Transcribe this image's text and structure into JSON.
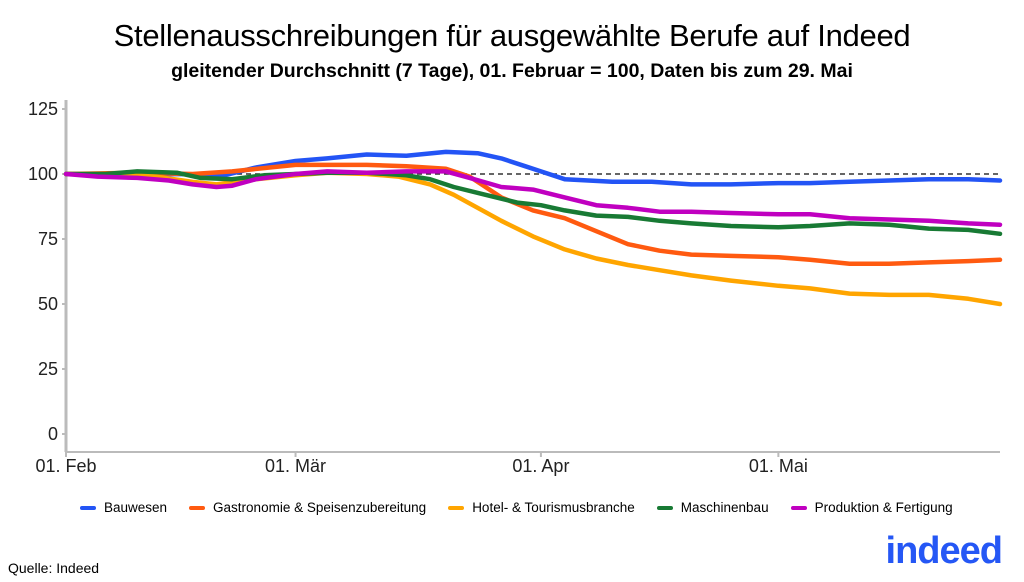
{
  "chart_data": {
    "type": "line",
    "title": "Stellenausschreibungen für ausgewählte Berufe auf Indeed",
    "subtitle": "gleitender Durchschnitt (7 Tage), 01. Februar = 100, Daten bis zum 29. Mai",
    "xlabel": "",
    "ylabel": "",
    "ylim": [
      0,
      125
    ],
    "yticks": [
      "0",
      "25",
      "50",
      "75",
      "100",
      "125"
    ],
    "xticks": [
      {
        "date": "02-01",
        "label": "01. Feb"
      },
      {
        "date": "03-01",
        "label": "01. Mär"
      },
      {
        "date": "04-01",
        "label": "01. Apr"
      },
      {
        "date": "05-01",
        "label": "01. Mai"
      }
    ],
    "xrange": [
      "02-01",
      "05-29"
    ],
    "reference_line": 100,
    "grid": false,
    "legend_position": "bottom",
    "series": [
      {
        "name": "Bauwesen",
        "color": "#2354f5",
        "points": [
          [
            "02-01",
            100
          ],
          [
            "02-08",
            99.5
          ],
          [
            "02-15",
            100
          ],
          [
            "02-21",
            99.5
          ],
          [
            "02-25",
            102.5
          ],
          [
            "03-01",
            105
          ],
          [
            "03-05",
            106
          ],
          [
            "03-10",
            107.5
          ],
          [
            "03-15",
            107
          ],
          [
            "03-20",
            108.5
          ],
          [
            "03-24",
            108
          ],
          [
            "03-27",
            106
          ],
          [
            "03-30",
            103
          ],
          [
            "04-01",
            101
          ],
          [
            "04-04",
            98
          ],
          [
            "04-10",
            97
          ],
          [
            "04-15",
            97
          ],
          [
            "04-20",
            96
          ],
          [
            "04-25",
            96
          ],
          [
            "05-01",
            96.5
          ],
          [
            "05-05",
            96.5
          ],
          [
            "05-10",
            97
          ],
          [
            "05-15",
            97.5
          ],
          [
            "05-20",
            98
          ],
          [
            "05-25",
            98
          ],
          [
            "05-29",
            97.5
          ]
        ]
      },
      {
        "name": "Gastronomie & Speisenzubereitung",
        "color": "#ff5a10",
        "points": [
          [
            "02-01",
            100
          ],
          [
            "02-10",
            100.5
          ],
          [
            "02-17",
            100
          ],
          [
            "02-22",
            101
          ],
          [
            "03-01",
            103.5
          ],
          [
            "03-10",
            103.5
          ],
          [
            "03-15",
            103
          ],
          [
            "03-20",
            102
          ],
          [
            "03-23",
            99
          ],
          [
            "03-27",
            91
          ],
          [
            "03-31",
            86
          ],
          [
            "04-04",
            83
          ],
          [
            "04-08",
            78
          ],
          [
            "04-12",
            73
          ],
          [
            "04-16",
            70.5
          ],
          [
            "04-20",
            69
          ],
          [
            "04-25",
            68.5
          ],
          [
            "05-01",
            68
          ],
          [
            "05-05",
            67
          ],
          [
            "05-10",
            65.5
          ],
          [
            "05-15",
            65.5
          ],
          [
            "05-20",
            66
          ],
          [
            "05-25",
            66.5
          ],
          [
            "05-29",
            67
          ]
        ]
      },
      {
        "name": "Hotel- & Tourismusbranche",
        "color": "#ffa500",
        "points": [
          [
            "02-01",
            100
          ],
          [
            "02-10",
            100
          ],
          [
            "02-17",
            97
          ],
          [
            "02-20",
            96
          ],
          [
            "02-25",
            98
          ],
          [
            "03-01",
            99.5
          ],
          [
            "03-05",
            100.5
          ],
          [
            "03-10",
            100
          ],
          [
            "03-14",
            99
          ],
          [
            "03-18",
            96
          ],
          [
            "03-21",
            92
          ],
          [
            "03-24",
            87
          ],
          [
            "03-27",
            82
          ],
          [
            "03-31",
            76
          ],
          [
            "04-04",
            71
          ],
          [
            "04-08",
            67.5
          ],
          [
            "04-12",
            65
          ],
          [
            "04-16",
            63
          ],
          [
            "04-20",
            61
          ],
          [
            "04-25",
            59
          ],
          [
            "05-01",
            57
          ],
          [
            "05-05",
            56
          ],
          [
            "05-10",
            54
          ],
          [
            "05-15",
            53.5
          ],
          [
            "05-20",
            53.5
          ],
          [
            "05-25",
            52
          ],
          [
            "05-29",
            50
          ]
        ]
      },
      {
        "name": "Maschinenbau",
        "color": "#187a34",
        "points": [
          [
            "02-01",
            100
          ],
          [
            "02-06",
            100
          ],
          [
            "02-10",
            101
          ],
          [
            "02-15",
            100.5
          ],
          [
            "02-18",
            98.5
          ],
          [
            "02-22",
            98
          ],
          [
            "02-26",
            99.5
          ],
          [
            "03-01",
            100
          ],
          [
            "03-05",
            100.5
          ],
          [
            "03-10",
            100.5
          ],
          [
            "03-15",
            99.5
          ],
          [
            "03-18",
            98
          ],
          [
            "03-21",
            95
          ],
          [
            "03-25",
            92
          ],
          [
            "03-29",
            89
          ],
          [
            "04-01",
            88
          ],
          [
            "04-04",
            86
          ],
          [
            "04-08",
            84
          ],
          [
            "04-12",
            83.5
          ],
          [
            "04-16",
            82
          ],
          [
            "04-20",
            81
          ],
          [
            "04-25",
            80
          ],
          [
            "05-01",
            79.5
          ],
          [
            "05-05",
            80
          ],
          [
            "05-10",
            81
          ],
          [
            "05-15",
            80.5
          ],
          [
            "05-20",
            79
          ],
          [
            "05-25",
            78.5
          ],
          [
            "05-29",
            77
          ]
        ]
      },
      {
        "name": "Produktion & Fertigung",
        "color": "#c000c0",
        "points": [
          [
            "02-01",
            100
          ],
          [
            "02-05",
            99
          ],
          [
            "02-10",
            98.5
          ],
          [
            "02-14",
            97.5
          ],
          [
            "02-17",
            96
          ],
          [
            "02-20",
            95
          ],
          [
            "02-22",
            95.5
          ],
          [
            "02-25",
            98
          ],
          [
            "03-01",
            100
          ],
          [
            "03-05",
            101
          ],
          [
            "03-10",
            100.5
          ],
          [
            "03-15",
            101
          ],
          [
            "03-20",
            101
          ],
          [
            "03-23",
            98.5
          ],
          [
            "03-27",
            95
          ],
          [
            "03-31",
            94
          ],
          [
            "04-04",
            91
          ],
          [
            "04-08",
            88
          ],
          [
            "04-12",
            87
          ],
          [
            "04-16",
            85.5
          ],
          [
            "04-20",
            85.5
          ],
          [
            "04-25",
            85
          ],
          [
            "05-01",
            84.5
          ],
          [
            "05-05",
            84.5
          ],
          [
            "05-10",
            83
          ],
          [
            "05-15",
            82.5
          ],
          [
            "05-20",
            82
          ],
          [
            "05-25",
            81
          ],
          [
            "05-29",
            80.5
          ]
        ]
      }
    ]
  },
  "source": "Quelle: Indeed",
  "logo_text": "indeed"
}
